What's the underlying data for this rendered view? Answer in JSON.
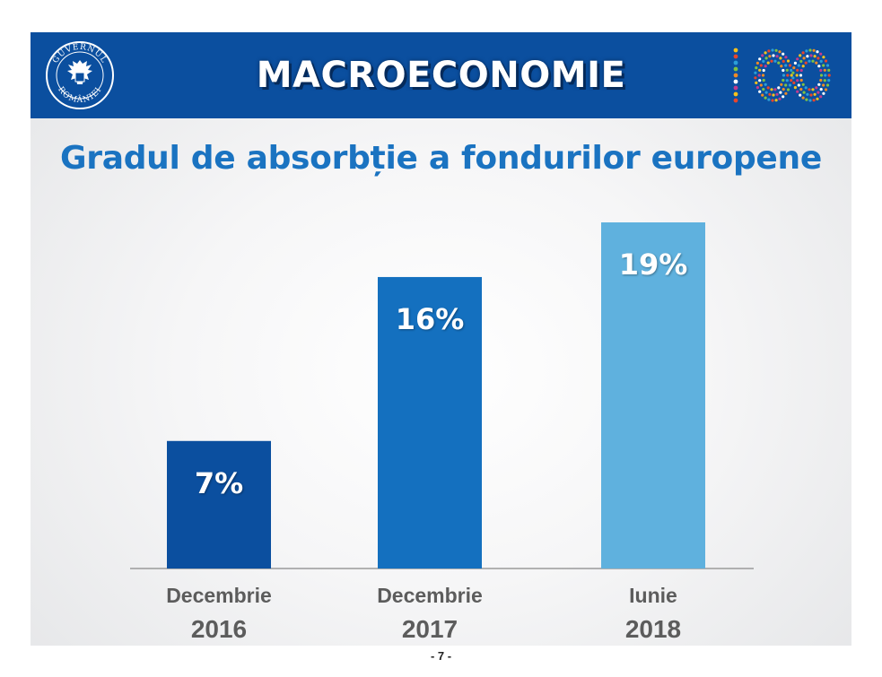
{
  "header": {
    "title": "MACROECONOMIE",
    "seal_text_top": "GUVERNUL",
    "seal_text_bottom": "ROMÂNIEI",
    "logo_text": "100"
  },
  "chart_data": {
    "type": "bar",
    "title": "Gradul de absorbție a fondurilor europene",
    "categories": [
      [
        "Decembrie",
        "2016"
      ],
      [
        "Decembrie",
        "2017"
      ],
      [
        "Iunie",
        "2018"
      ]
    ],
    "values": [
      7,
      16,
      19
    ],
    "data_labels": [
      "7%",
      "16%",
      "19%"
    ],
    "colors": [
      "#0b4f9f",
      "#1470bf",
      "#5fb1de"
    ],
    "ylim": [
      0,
      20
    ],
    "grid": false,
    "legend": "none"
  },
  "footer": {
    "page_number": "- 7 -"
  }
}
